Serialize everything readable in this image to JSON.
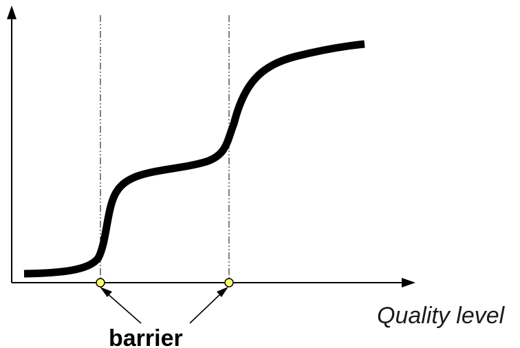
{
  "diagram": {
    "x_axis_label": "Quality level",
    "callout_label": "barrier",
    "barrier_count": 2,
    "colors": {
      "line": "#000000",
      "marker_fill": "#ffff66",
      "background": "#ffffff"
    }
  }
}
